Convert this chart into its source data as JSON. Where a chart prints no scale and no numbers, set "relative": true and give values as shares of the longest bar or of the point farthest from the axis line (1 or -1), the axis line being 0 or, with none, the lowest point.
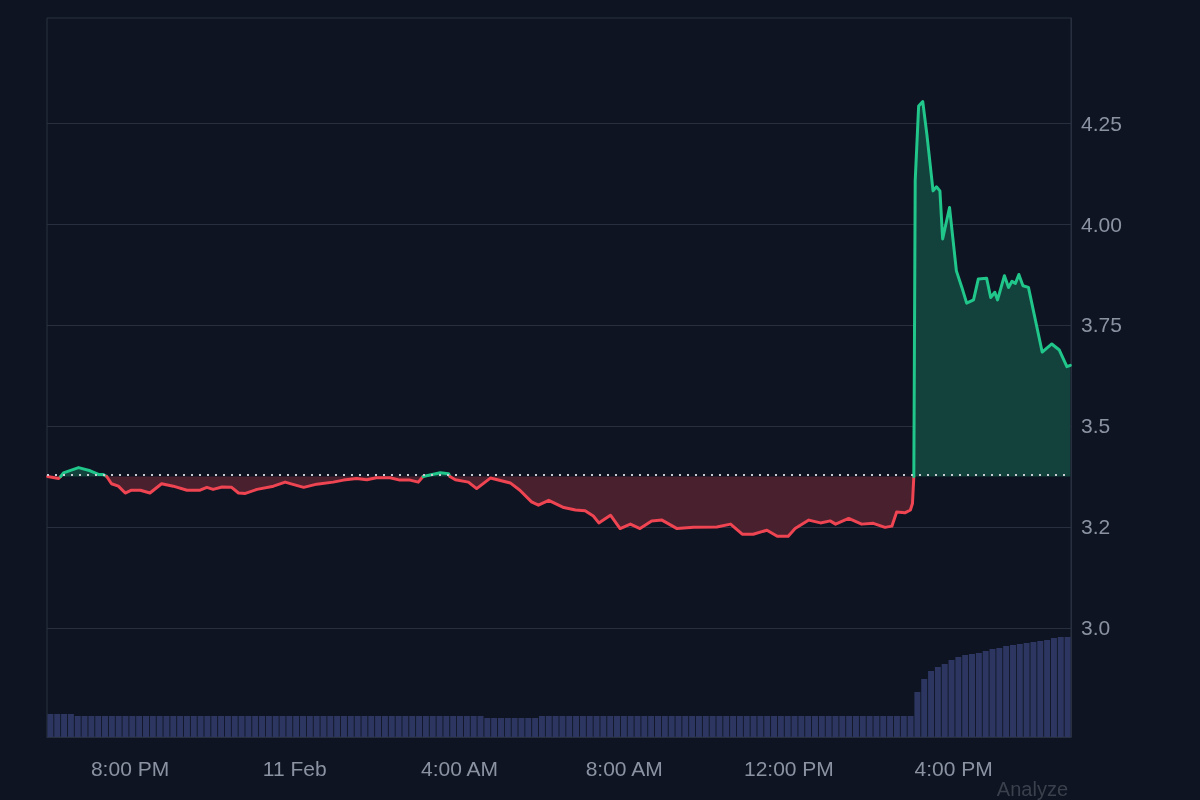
{
  "chart_data": [
    {
      "type": "area",
      "annotations": [
        "Analyze"
      ],
      "grid": "y",
      "marker": "none",
      "ylim": [
        2.73,
        4.51
      ],
      "yticks": [
        {
          "value": 3,
          "label": "3.0"
        },
        {
          "value": 3.25,
          "label": "3.2"
        },
        3.5,
        3.75,
        {
          "value": 4,
          "label": "4.00"
        },
        4.25
      ],
      "xlim": [
        "--02-10T17:59",
        "--02-11T18:51"
      ],
      "xticks": [
        {
          "value": "--02-10T20:00",
          "label": "8:00 PM"
        },
        {
          "value": "--02-11T00:00",
          "label": "11 Feb"
        },
        {
          "value": "--02-11T04:00",
          "label": "4:00 AM"
        },
        {
          "value": "--02-11T08:00",
          "label": "8:00 AM"
        },
        {
          "value": "--02-11T12:00",
          "label": "12:00 PM"
        },
        {
          "value": "--02-11T16:00",
          "label": "4:00 PM"
        }
      ],
      "ref_lines": [
        {
          "axis": "y",
          "value": 3.375,
          "line_style": "dotted",
          "color": "#c9ccd3"
        }
      ],
      "series": [
        {
          "type": "line",
          "color": "#ef4452",
          "x": [
            "--02-10T18:00",
            "--02-10T18:16",
            "--02-10T18:19"
          ],
          "values": [
            3.375,
            3.37,
            3.375
          ],
          "lower": [
            3.375,
            3.37,
            3.375
          ],
          "upper": [
            3.375,
            3.375,
            3.375
          ]
        },
        {
          "color": "#21c68b",
          "x": [
            "--02-10T18:19",
            "--02-10T18:23",
            "--02-10T18:45",
            "--02-10T19:02",
            "--02-10T19:14",
            "--02-10T19:21",
            "--02-10T19:26"
          ],
          "values": [
            3.375,
            3.384,
            3.397,
            3.389,
            3.38,
            3.38,
            3.375
          ]
        },
        {
          "type": "line",
          "color": "#ef4452",
          "x": [
            "--02-10T19:26",
            "--02-10T19:33",
            "--02-10T19:43",
            "--02-10T19:53",
            "--02-10T20:02",
            "--02-10T20:15",
            "--02-10T20:29",
            "--02-10T20:46",
            "--02-10T21:03",
            "--02-10T21:23",
            "--02-10T21:42",
            "--02-10T21:52",
            "--02-10T22:01",
            "--02-10T22:14",
            "--02-10T22:28",
            "--02-10T22:38",
            "--02-10T22:48",
            "--02-10T23:05",
            "--02-10T23:29",
            "--02-10T23:46",
            "--02-10T23:56",
            "--02-11T00:13",
            "--02-11T00:32",
            "--02-11T00:56",
            "--02-11T01:11",
            "--02-11T01:30",
            "--02-11T01:45",
            "--02-11T01:59",
            "--02-11T02:19",
            "--02-11T02:33",
            "--02-11T02:48",
            "--02-11T03:00",
            "--02-11T03:07"
          ],
          "values": [
            3.375,
            3.357,
            3.351,
            3.334,
            3.341,
            3.341,
            3.334,
            3.357,
            3.351,
            3.341,
            3.341,
            3.348,
            3.343,
            3.349,
            3.348,
            3.334,
            3.333,
            3.343,
            3.351,
            3.361,
            3.356,
            3.348,
            3.356,
            3.361,
            3.366,
            3.37,
            3.367,
            3.372,
            3.372,
            3.366,
            3.366,
            3.361,
            3.375
          ],
          "lower": [
            3.375,
            3.357,
            3.351,
            3.334,
            3.341,
            3.341,
            3.334,
            3.357,
            3.351,
            3.341,
            3.341,
            3.348,
            3.343,
            3.349,
            3.348,
            3.334,
            3.333,
            3.343,
            3.351,
            3.361,
            3.356,
            3.348,
            3.356,
            3.361,
            3.366,
            3.37,
            3.367,
            3.372,
            3.372,
            3.366,
            3.366,
            3.361,
            3.375
          ],
          "upper": [
            3.375,
            3.375,
            3.375,
            3.375,
            3.375,
            3.375,
            3.375,
            3.375,
            3.375,
            3.375,
            3.375,
            3.375,
            3.375,
            3.375,
            3.375,
            3.375,
            3.375,
            3.375,
            3.375,
            3.375,
            3.375,
            3.375,
            3.375,
            3.375,
            3.375,
            3.375,
            3.375,
            3.375,
            3.375,
            3.375,
            3.375,
            3.375,
            3.375
          ]
        },
        {
          "color": "#21c68b",
          "x": [
            "--02-11T03:07",
            "--02-11T03:32",
            "--02-11T03:44",
            "--02-11T03:46"
          ],
          "values": [
            3.375,
            3.384,
            3.382,
            3.375
          ]
        },
        {
          "type": "line",
          "color": "#ef4452",
          "x": [
            "--02-11T03:46",
            "--02-11T03:54",
            "--02-11T04:13",
            "--02-11T04:25",
            "--02-11T04:45",
            "--02-11T05:14",
            "--02-11T05:28",
            "--02-11T05:45",
            "--02-11T05:55",
            "--02-11T06:10",
            "--02-11T06:32",
            "--02-11T06:49",
            "--02-11T07:03",
            "--02-11T07:15",
            "--02-11T07:23",
            "--02-11T07:40",
            "--02-11T07:54",
            "--02-11T08:09",
            "--02-11T08:23",
            "--02-11T08:40",
            "--02-11T08:55",
            "--02-11T09:17",
            "--02-11T09:41",
            "--02-11T10:15",
            "--02-11T10:35",
            "--02-11T10:52",
            "--02-11T11:08",
            "--02-11T11:28",
            "--02-11T11:43",
            "--02-11T11:59",
            "--02-11T12:09",
            "--02-11T12:29",
            "--02-11T12:46",
            "--02-11T13:00",
            "--02-11T13:08",
            "--02-11T13:27",
            "--02-11T13:46",
            "--02-11T14:03",
            "--02-11T14:20",
            "--02-11T14:30",
            "--02-11T14:37",
            "--02-11T14:49",
            "--02-11T14:57",
            "--02-11T15:00",
            "--02-11T15:02"
          ],
          "values": [
            3.375,
            3.367,
            3.361,
            3.345,
            3.371,
            3.359,
            3.341,
            3.312,
            3.304,
            3.316,
            3.298,
            3.292,
            3.29,
            3.277,
            3.26,
            3.279,
            3.246,
            3.257,
            3.246,
            3.265,
            3.267,
            3.246,
            3.249,
            3.25,
            3.257,
            3.232,
            3.232,
            3.242,
            3.227,
            3.227,
            3.246,
            3.267,
            3.26,
            3.265,
            3.257,
            3.271,
            3.257,
            3.259,
            3.249,
            3.252,
            3.287,
            3.285,
            3.292,
            3.308,
            3.375
          ],
          "lower": [
            3.375,
            3.367,
            3.361,
            3.345,
            3.371,
            3.359,
            3.341,
            3.312,
            3.304,
            3.316,
            3.298,
            3.292,
            3.29,
            3.277,
            3.26,
            3.279,
            3.246,
            3.257,
            3.246,
            3.265,
            3.267,
            3.246,
            3.249,
            3.25,
            3.257,
            3.232,
            3.232,
            3.242,
            3.227,
            3.227,
            3.246,
            3.267,
            3.26,
            3.265,
            3.257,
            3.271,
            3.257,
            3.259,
            3.249,
            3.252,
            3.287,
            3.285,
            3.292,
            3.308,
            3.375
          ],
          "upper": [
            3.375,
            3.375,
            3.375,
            3.375,
            3.375,
            3.375,
            3.375,
            3.375,
            3.375,
            3.375,
            3.375,
            3.375,
            3.375,
            3.375,
            3.375,
            3.375,
            3.375,
            3.375,
            3.375,
            3.375,
            3.375,
            3.375,
            3.375,
            3.375,
            3.375,
            3.375,
            3.375,
            3.375,
            3.375,
            3.375,
            3.375,
            3.375,
            3.375,
            3.375,
            3.375,
            3.375,
            3.375,
            3.375,
            3.375,
            3.375,
            3.375,
            3.375,
            3.375,
            3.375,
            3.375
          ]
        },
        {
          "color": "#21c68b",
          "x": [
            "--02-11T15:02",
            "--02-11T15:04",
            "--02-11T15:09",
            "--02-11T15:15",
            "--02-11T15:21",
            "--02-11T15:30",
            "--02-11T15:35",
            "--02-11T15:40",
            "--02-11T15:44",
            "--02-11T15:54",
            "--02-11T16:04",
            "--02-11T16:12",
            "--02-11T16:19",
            "--02-11T16:29",
            "--02-11T16:36",
            "--02-11T16:48",
            "--02-11T16:54",
            "--02-11T17:00",
            "--02-11T17:04",
            "--02-11T17:14",
            "--02-11T17:20",
            "--02-11T17:25",
            "--02-11T17:30",
            "--02-11T17:35",
            "--02-11T17:41",
            "--02-11T17:49",
            "--02-11T18:09",
            "--02-11T18:23",
            "--02-11T18:34",
            "--02-11T18:45",
            "--02-11T18:50"
          ],
          "values": [
            3.375,
            4.107,
            4.292,
            4.303,
            4.222,
            4.082,
            4.092,
            4.082,
            3.963,
            4.041,
            3.884,
            3.843,
            3.804,
            3.812,
            3.864,
            3.866,
            3.818,
            3.831,
            3.812,
            3.872,
            3.843,
            3.858,
            3.853,
            3.875,
            3.847,
            3.843,
            3.683,
            3.703,
            3.688,
            3.647,
            3.65
          ]
        }
      ]
    },
    {
      "type": "bar",
      "relative": true,
      "tick_labels": false,
      "color": "#2c3660",
      "categories": [
        null,
        null,
        null,
        null,
        null,
        null,
        null,
        null,
        null,
        null,
        null,
        null,
        null,
        null,
        null,
        null,
        null,
        null,
        null,
        null,
        null,
        null,
        null,
        null,
        null,
        null,
        null,
        null,
        null,
        null,
        null,
        null,
        null,
        null,
        null,
        null,
        null,
        null,
        null,
        null,
        null,
        null,
        null,
        null,
        null,
        null,
        null,
        null,
        null,
        null,
        null,
        null,
        null,
        null,
        null,
        null,
        null,
        null,
        null,
        null,
        null,
        null,
        null,
        null,
        null,
        null,
        null,
        null,
        null,
        null,
        null,
        null,
        null,
        null,
        null,
        null,
        null,
        null,
        null,
        null,
        null,
        null,
        null,
        null,
        null,
        null,
        null,
        null,
        null,
        null,
        null,
        null,
        null,
        null,
        null,
        null,
        null,
        null,
        null,
        null,
        null,
        null,
        null,
        null,
        null,
        null,
        null,
        null,
        null,
        null,
        null,
        null,
        null,
        null,
        null,
        null,
        null,
        null,
        null,
        null,
        null,
        null,
        null,
        null,
        null,
        null,
        null,
        null,
        null,
        null,
        null,
        null,
        null,
        null,
        null,
        null,
        null,
        null,
        null,
        null,
        null,
        null,
        null,
        null,
        null,
        null,
        null,
        null,
        null,
        null
      ],
      "values": [
        0.23,
        0.23,
        0.23,
        0.23,
        0.21,
        0.21,
        0.21,
        0.21,
        0.21,
        0.21,
        0.21,
        0.21,
        0.21,
        0.21,
        0.21,
        0.21,
        0.21,
        0.21,
        0.21,
        0.21,
        0.21,
        0.21,
        0.21,
        0.21,
        0.21,
        0.21,
        0.21,
        0.21,
        0.21,
        0.21,
        0.21,
        0.21,
        0.21,
        0.21,
        0.21,
        0.21,
        0.21,
        0.21,
        0.21,
        0.21,
        0.21,
        0.21,
        0.21,
        0.21,
        0.21,
        0.21,
        0.21,
        0.21,
        0.21,
        0.21,
        0.21,
        0.21,
        0.21,
        0.21,
        0.21,
        0.21,
        0.21,
        0.21,
        0.21,
        0.21,
        0.21,
        0.21,
        0.21,
        0.21,
        0.19,
        0.19,
        0.19,
        0.19,
        0.19,
        0.19,
        0.19,
        0.19,
        0.21,
        0.21,
        0.21,
        0.21,
        0.21,
        0.21,
        0.21,
        0.21,
        0.21,
        0.21,
        0.21,
        0.21,
        0.21,
        0.21,
        0.21,
        0.21,
        0.21,
        0.21,
        0.21,
        0.21,
        0.21,
        0.21,
        0.21,
        0.21,
        0.21,
        0.21,
        0.21,
        0.21,
        0.21,
        0.21,
        0.21,
        0.21,
        0.21,
        0.21,
        0.21,
        0.21,
        0.21,
        0.21,
        0.21,
        0.21,
        0.21,
        0.21,
        0.21,
        0.21,
        0.21,
        0.21,
        0.21,
        0.21,
        0.21,
        0.21,
        0.21,
        0.21,
        0.21,
        0.21,
        0.21,
        0.45,
        0.58,
        0.66,
        0.7,
        0.73,
        0.77,
        0.8,
        0.82,
        0.83,
        0.84,
        0.86,
        0.88,
        0.89,
        0.91,
        0.92,
        0.93,
        0.94,
        0.95,
        0.96,
        0.97,
        0.99,
        1,
        1
      ]
    }
  ]
}
